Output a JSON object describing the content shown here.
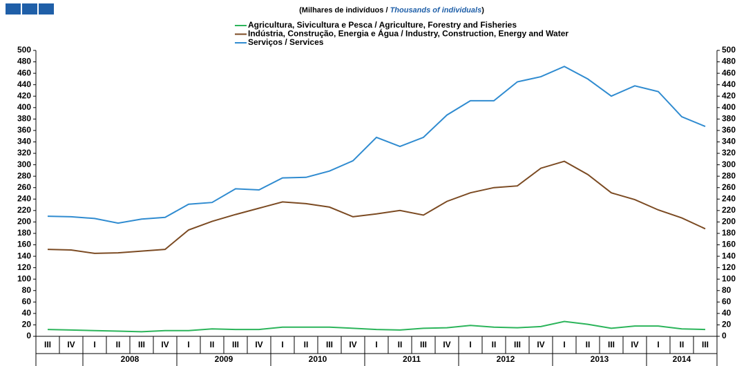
{
  "chart_data": {
    "type": "line",
    "subtitle": [
      "(Milhares  de indivíduos  / ",
      "Thousands of individuals",
      ")"
    ],
    "groups": [
      {
        "label": null,
        "quarters": [
          "III",
          "IV"
        ]
      },
      {
        "label": "2008",
        "quarters": [
          "I",
          "II",
          "III",
          "IV"
        ]
      },
      {
        "label": "2009",
        "quarters": [
          "I",
          "II",
          "III",
          "IV"
        ]
      },
      {
        "label": "2010",
        "quarters": [
          "I",
          "II",
          "III",
          "IV"
        ]
      },
      {
        "label": "2011",
        "quarters": [
          "I",
          "II",
          "III",
          "IV"
        ]
      },
      {
        "label": "2012",
        "quarters": [
          "I",
          "II",
          "III",
          "IV"
        ]
      },
      {
        "label": "2013",
        "quarters": [
          "I",
          "II",
          "III",
          "IV"
        ]
      },
      {
        "label": "2014",
        "quarters": [
          "I",
          "II",
          "III"
        ]
      }
    ],
    "series": [
      {
        "name": "Agricultura, Sivicultura e Pesca / Agriculture, Forestry and Fisheries",
        "color": "#2bb45a",
        "values": [
          12,
          11,
          10,
          9,
          8,
          10,
          10,
          13,
          12,
          12,
          16,
          16,
          16,
          14,
          12,
          11,
          14,
          15,
          19,
          16,
          15,
          17,
          26,
          21,
          14,
          18,
          18,
          13,
          12
        ]
      },
      {
        "name": "Indústria, Construção, Energia e Água / Industry, Construction, Energy and Water",
        "color": "#7b4a22",
        "values": [
          152,
          151,
          145,
          146,
          149,
          152,
          186,
          201,
          213,
          224,
          235,
          232,
          226,
          209,
          214,
          220,
          212,
          236,
          251,
          260,
          263,
          294,
          306,
          283,
          251,
          239,
          221,
          207,
          188
        ]
      },
      {
        "name": "Serviços / Services",
        "color": "#2f8bd0",
        "values": [
          210,
          209,
          206,
          198,
          205,
          208,
          231,
          234,
          258,
          256,
          277,
          278,
          289,
          307,
          348,
          332,
          348,
          387,
          412,
          412,
          445,
          454,
          472,
          450,
          420,
          438,
          428,
          384,
          367
        ]
      }
    ],
    "ylim": [
      0,
      500
    ],
    "yticks": [
      0,
      20,
      40,
      60,
      80,
      100,
      120,
      140,
      160,
      180,
      200,
      220,
      240,
      260,
      280,
      300,
      320,
      340,
      360,
      380,
      400,
      420,
      440,
      460,
      480,
      500
    ],
    "legend": "top"
  }
}
